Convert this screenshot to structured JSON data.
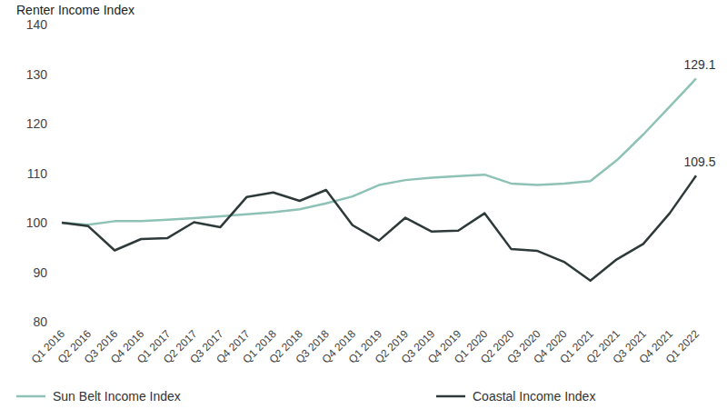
{
  "chart_data": {
    "type": "line",
    "y_label": "Renter Income Index",
    "categories": [
      "Q1 2016",
      "Q2 2016",
      "Q3 2016",
      "Q4 2016",
      "Q1 2017",
      "Q2 2017",
      "Q3 2017",
      "Q4 2017",
      "Q1 2018",
      "Q2 2018",
      "Q3 2018",
      "Q4 2018",
      "Q1 2019",
      "Q2 2019",
      "Q3 2019",
      "Q4 2019",
      "Q1 2020",
      "Q2 2020",
      "Q3 2020",
      "Q4 2020",
      "Q1 2021",
      "Q2 2021",
      "Q3 2021",
      "Q4 2021",
      "Q1 2022"
    ],
    "series": [
      {
        "name": "Sun Belt Income Index",
        "color": "#8fc2b6",
        "values": [
          100,
          99.6,
          100.3,
          100.3,
          100.6,
          100.9,
          101.3,
          101.7,
          102.1,
          102.7,
          103.9,
          105.3,
          107.6,
          108.6,
          109.1,
          109.4,
          109.7,
          107.9,
          107.6,
          107.9,
          108.4,
          112.6,
          117.8,
          123.4,
          129.1
        ]
      },
      {
        "name": "Coastal Income Index",
        "color": "#2e3a39",
        "values": [
          100,
          99.3,
          94.4,
          96.7,
          96.9,
          100.1,
          99.1,
          105.2,
          106.1,
          104.4,
          106.6,
          99.5,
          96.4,
          101.0,
          98.2,
          98.4,
          101.9,
          94.7,
          94.3,
          92.1,
          88.3,
          92.6,
          95.7,
          101.9,
          109.5
        ]
      }
    ],
    "annotations": [
      {
        "series": "Sun Belt Income Index",
        "text": "129.1"
      },
      {
        "series": "Coastal Income Index",
        "text": "109.5"
      }
    ],
    "ylim": [
      80,
      140
    ],
    "yticks": [
      80,
      90,
      100,
      110,
      120,
      130,
      140
    ],
    "grid": false,
    "legend": "bottom"
  }
}
